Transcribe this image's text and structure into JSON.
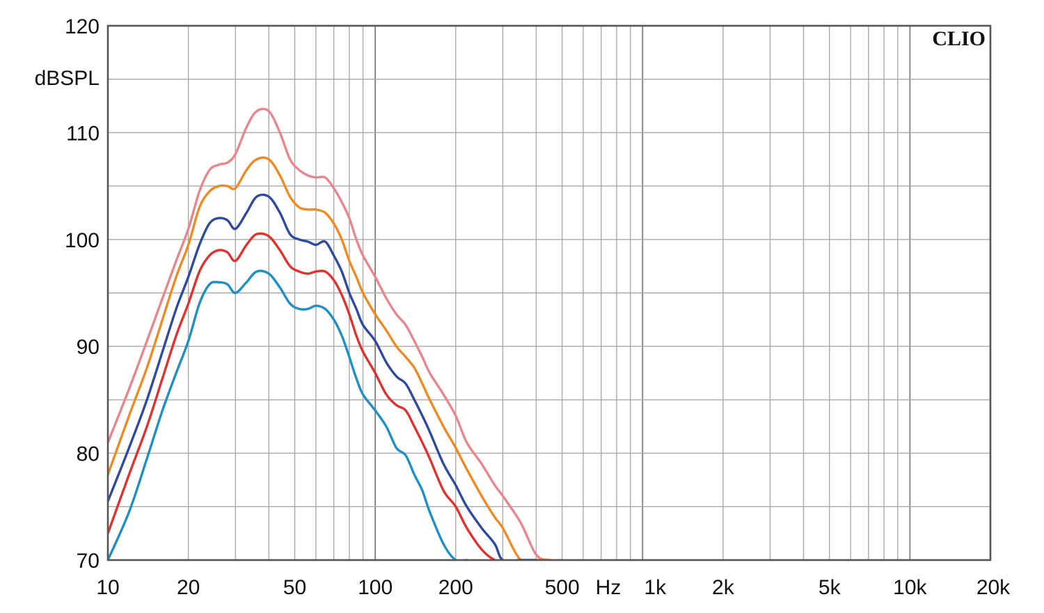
{
  "chart_data": {
    "type": "line",
    "brand": "CLIO",
    "ylabel": "dBSPL",
    "x_scale": "log",
    "xlim": [
      10,
      20000
    ],
    "ylim": [
      70,
      120
    ],
    "grid": true,
    "y_ticks": [
      {
        "value": 120,
        "label": "120"
      },
      {
        "value": 110,
        "label": "110"
      },
      {
        "value": 100,
        "label": "100"
      },
      {
        "value": 90,
        "label": "90"
      },
      {
        "value": 80,
        "label": "80"
      },
      {
        "value": 70,
        "label": "70"
      }
    ],
    "x_ticks": [
      {
        "value": 10,
        "label": "10"
      },
      {
        "value": 20,
        "label": "20"
      },
      {
        "value": 50,
        "label": "50"
      },
      {
        "value": 100,
        "label": "100"
      },
      {
        "value": 200,
        "label": "200"
      },
      {
        "value": 500,
        "label": "500"
      },
      {
        "value": 1000,
        "label": "1k"
      },
      {
        "value": 2000,
        "label": "2k"
      },
      {
        "value": 5000,
        "label": "5k"
      },
      {
        "value": 10000,
        "label": "10k"
      },
      {
        "value": 20000,
        "label": "20k"
      }
    ],
    "x_unit": "Hz",
    "series": [
      {
        "color": "#e8868b",
        "x": [
          10,
          12,
          14,
          16,
          18,
          20,
          22,
          24,
          26,
          28,
          30,
          33,
          36,
          40,
          44,
          48,
          52,
          56,
          60,
          65,
          70,
          75,
          80,
          85,
          90,
          100,
          110,
          120,
          130,
          140,
          150,
          160,
          180,
          200,
          220,
          250,
          280,
          300,
          350,
          400,
          450,
          500
        ],
        "y": [
          81,
          86,
          90.5,
          94.5,
          98,
          101,
          104.5,
          106.5,
          107,
          107.2,
          108,
          110.5,
          112,
          112,
          110,
          107.5,
          106.5,
          106,
          105.8,
          105.8,
          104.8,
          103.5,
          102,
          100,
          98.5,
          96.5,
          94.5,
          93,
          92,
          90.5,
          89,
          87.5,
          85.5,
          83.5,
          81,
          79,
          77,
          76,
          73.5,
          70.5,
          70,
          70
        ]
      },
      {
        "color": "#ef8a20",
        "x": [
          10,
          12,
          14,
          16,
          18,
          20,
          22,
          24,
          26,
          28,
          30,
          33,
          36,
          40,
          44,
          48,
          52,
          56,
          60,
          65,
          70,
          75,
          80,
          85,
          90,
          100,
          110,
          120,
          130,
          140,
          150,
          160,
          180,
          200,
          220,
          250,
          280,
          300,
          350,
          400,
          450
        ],
        "y": [
          78,
          83.5,
          88,
          92.5,
          96.5,
          99.5,
          103,
          104.5,
          105,
          105,
          104.8,
          106.5,
          107.5,
          107.5,
          106,
          104,
          103,
          102.8,
          102.8,
          102.5,
          101.5,
          100,
          98,
          96.5,
          95,
          93,
          91.5,
          90,
          89,
          88,
          86.5,
          85,
          82.5,
          80.5,
          78.5,
          76,
          74,
          73,
          70,
          70,
          70
        ]
      },
      {
        "color": "#2d4aa0",
        "x": [
          10,
          12,
          14,
          16,
          18,
          20,
          22,
          24,
          26,
          28,
          30,
          33,
          36,
          40,
          44,
          48,
          52,
          56,
          60,
          65,
          70,
          75,
          80,
          85,
          90,
          100,
          110,
          120,
          130,
          140,
          150,
          160,
          180,
          200,
          220,
          250,
          280,
          300,
          350,
          400
        ],
        "y": [
          75.5,
          80.5,
          85,
          89.5,
          93.5,
          96.5,
          99.5,
          101.5,
          102,
          101.8,
          101,
          102.5,
          104,
          104,
          102.5,
          100.5,
          100,
          99.8,
          99.5,
          99.8,
          98.5,
          97,
          95,
          93.5,
          92,
          90.5,
          88.5,
          87.2,
          86.5,
          85,
          83.5,
          82,
          79,
          77,
          75,
          73,
          71.5,
          70,
          70,
          70
        ]
      },
      {
        "color": "#e0312e",
        "x": [
          10,
          12,
          14,
          16,
          18,
          20,
          22,
          24,
          26,
          28,
          30,
          33,
          36,
          40,
          44,
          48,
          52,
          56,
          60,
          65,
          70,
          75,
          80,
          85,
          90,
          100,
          110,
          120,
          130,
          140,
          150,
          160,
          180,
          200,
          220,
          250,
          280,
          300
        ],
        "y": [
          72.5,
          78,
          82.5,
          87,
          91,
          94,
          97,
          98.5,
          99,
          98.8,
          98,
          99.5,
          100.5,
          100.3,
          99,
          97.5,
          97,
          96.8,
          97,
          97,
          96.2,
          94.8,
          93,
          91,
          89.5,
          87.5,
          85.5,
          84.5,
          84,
          82.5,
          81,
          79.5,
          76.5,
          75,
          73,
          71,
          70,
          70
        ]
      },
      {
        "color": "#1e8fc4",
        "x": [
          10,
          12,
          14,
          16,
          18,
          20,
          22,
          24,
          26,
          28,
          30,
          33,
          36,
          40,
          44,
          48,
          52,
          56,
          60,
          65,
          70,
          75,
          80,
          85,
          90,
          100,
          110,
          120,
          130,
          140,
          150,
          160,
          180,
          200,
          220
        ],
        "y": [
          70,
          74.5,
          79.5,
          84,
          87.5,
          90.5,
          94,
          95.8,
          96,
          95.8,
          95,
          96,
          97,
          96.8,
          95.5,
          94,
          93.5,
          93.5,
          93.8,
          93.5,
          92.5,
          91,
          89,
          87,
          85.5,
          84,
          82.5,
          80.5,
          79.8,
          78,
          76.5,
          74.5,
          71.5,
          70,
          70
        ]
      }
    ]
  }
}
